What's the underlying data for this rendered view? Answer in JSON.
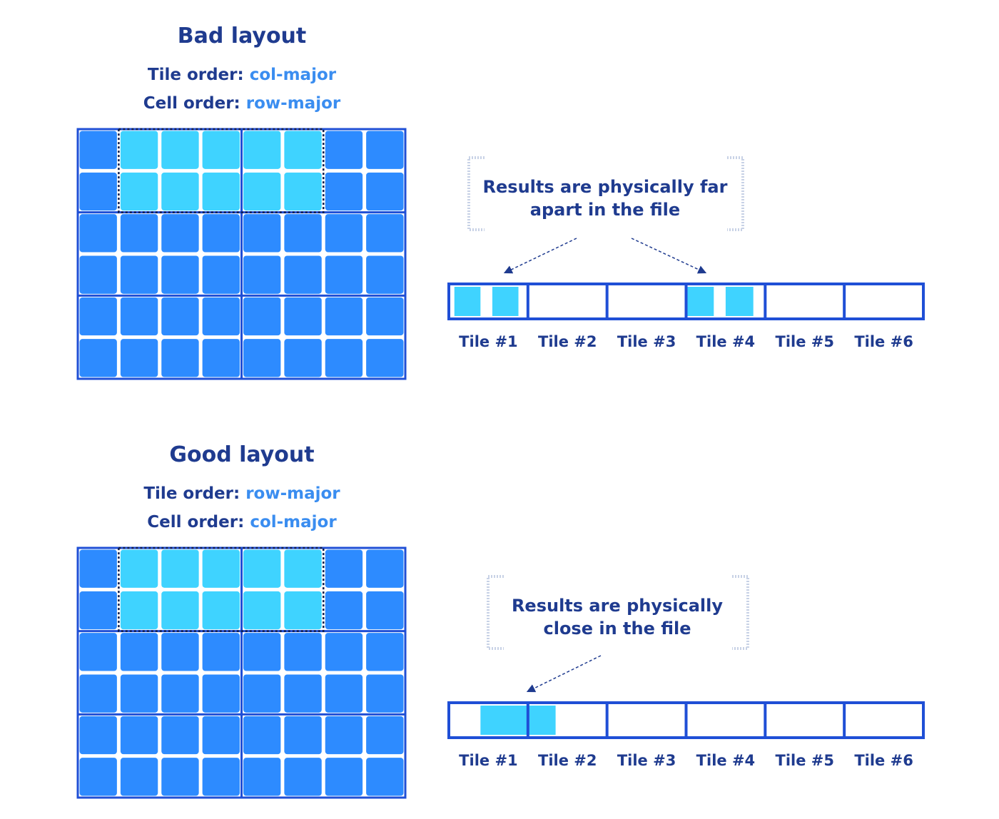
{
  "colors": {
    "navy": "#1f3b8f",
    "accent": "#3a8df0",
    "grid_border": "#1f4fd6",
    "cell": "#2d8bff",
    "cell_selected": "#3fd3ff",
    "bracket": "#c8d2e6"
  },
  "grid": {
    "rows": 6,
    "cols": 8,
    "tile_rows": 3,
    "tile_cols": 2
  },
  "sections": [
    {
      "title": "Bad layout",
      "tile_order_label": "Tile order:",
      "tile_order_value": "col-major",
      "cell_order_label": "Cell order:",
      "cell_order_value": "row-major",
      "selection": {
        "row_start": 0,
        "row_end": 1,
        "col_start": 1,
        "col_end": 5
      },
      "note_lines": [
        "Results are physically far",
        "apart in the file"
      ],
      "tiles": [
        "Tile #1",
        "Tile #2",
        "Tile #3",
        "Tile #4",
        "Tile #5",
        "Tile #6"
      ],
      "highlights": [
        {
          "tile": 0,
          "start": 0.07,
          "end": 0.4
        },
        {
          "tile": 0,
          "start": 0.55,
          "end": 0.88
        },
        {
          "tile": 3,
          "start": 0.0,
          "end": 0.35
        },
        {
          "tile": 3,
          "start": 0.5,
          "end": 0.85
        }
      ],
      "arrow_targets": [
        0,
        3
      ]
    },
    {
      "title": "Good layout",
      "tile_order_label": "Tile order:",
      "tile_order_value": "row-major",
      "cell_order_label": "Cell order:",
      "cell_order_value": "col-major",
      "selection": {
        "row_start": 0,
        "row_end": 1,
        "col_start": 1,
        "col_end": 5
      },
      "note_lines": [
        "Results are physically",
        "close in the file"
      ],
      "tiles": [
        "Tile #1",
        "Tile #2",
        "Tile #3",
        "Tile #4",
        "Tile #5",
        "Tile #6"
      ],
      "highlights": [
        {
          "tile": 0,
          "start": 0.4,
          "end": 1.0
        },
        {
          "tile": 1,
          "start": 0.0,
          "end": 0.35
        }
      ],
      "arrow_targets": [
        0
      ]
    }
  ]
}
